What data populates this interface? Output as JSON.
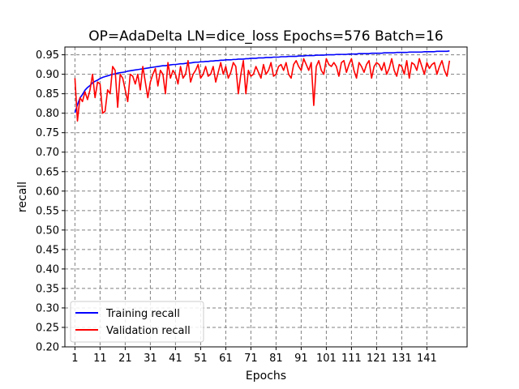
{
  "chart_data": {
    "type": "line",
    "title": "OP=AdaDelta LN=dice_loss Epochs=576 Batch=16",
    "xlabel": "Epochs",
    "ylabel": "recall",
    "xlim": [
      -3,
      157
    ],
    "ylim": [
      0.2,
      0.97
    ],
    "xticks": [
      "1",
      "11",
      "21",
      "31",
      "41",
      "51",
      "61",
      "71",
      "81",
      "91",
      "101",
      "111",
      "121",
      "131",
      "141"
    ],
    "yticks": [
      "0.20",
      "0.25",
      "0.30",
      "0.35",
      "0.40",
      "0.45",
      "0.50",
      "0.55",
      "0.60",
      "0.65",
      "0.70",
      "0.75",
      "0.80",
      "0.85",
      "0.90",
      "0.95"
    ],
    "grid": true,
    "legend_position": "lower-left",
    "x": [
      1,
      2,
      3,
      4,
      5,
      6,
      7,
      8,
      9,
      10,
      11,
      12,
      13,
      14,
      15,
      16,
      17,
      18,
      19,
      20,
      21,
      22,
      23,
      24,
      25,
      26,
      27,
      28,
      29,
      30,
      31,
      32,
      33,
      34,
      35,
      36,
      37,
      38,
      39,
      40,
      41,
      42,
      43,
      44,
      45,
      46,
      47,
      48,
      49,
      50,
      51,
      52,
      53,
      54,
      55,
      56,
      57,
      58,
      59,
      60,
      61,
      62,
      63,
      64,
      65,
      66,
      67,
      68,
      69,
      70,
      71,
      72,
      73,
      74,
      75,
      76,
      77,
      78,
      79,
      80,
      81,
      82,
      83,
      84,
      85,
      86,
      87,
      88,
      89,
      90,
      91,
      92,
      93,
      94,
      95,
      96,
      97,
      98,
      99,
      100,
      101,
      102,
      103,
      104,
      105,
      106,
      107,
      108,
      109,
      110,
      111,
      112,
      113,
      114,
      115,
      116,
      117,
      118,
      119,
      120,
      121,
      122,
      123,
      124,
      125,
      126,
      127,
      128,
      129,
      130,
      131,
      132,
      133,
      134,
      135,
      136,
      137,
      138,
      139,
      140,
      141,
      142,
      143,
      144,
      145,
      146,
      147,
      148,
      149,
      150
    ],
    "series": [
      {
        "name": "Training recall",
        "color": "#0000ff",
        "values": [
          0.801,
          0.822,
          0.839,
          0.848,
          0.859,
          0.866,
          0.871,
          0.878,
          0.882,
          0.885,
          0.889,
          0.892,
          0.894,
          0.896,
          0.898,
          0.9,
          0.901,
          0.903,
          0.904,
          0.905,
          0.906,
          0.908,
          0.909,
          0.91,
          0.911,
          0.912,
          0.913,
          0.914,
          0.915,
          0.916,
          0.917,
          0.918,
          0.919,
          0.92,
          0.921,
          0.922,
          0.922,
          0.923,
          0.924,
          0.925,
          0.925,
          0.926,
          0.927,
          0.927,
          0.928,
          0.929,
          0.929,
          0.93,
          0.931,
          0.931,
          0.932,
          0.932,
          0.933,
          0.933,
          0.934,
          0.934,
          0.935,
          0.935,
          0.936,
          0.936,
          0.937,
          0.937,
          0.937,
          0.938,
          0.938,
          0.939,
          0.939,
          0.939,
          0.94,
          0.94,
          0.941,
          0.941,
          0.941,
          0.942,
          0.942,
          0.942,
          0.943,
          0.943,
          0.943,
          0.944,
          0.944,
          0.944,
          0.945,
          0.945,
          0.945,
          0.946,
          0.946,
          0.946,
          0.946,
          0.947,
          0.947,
          0.947,
          0.948,
          0.948,
          0.948,
          0.948,
          0.949,
          0.949,
          0.949,
          0.949,
          0.95,
          0.95,
          0.95,
          0.95,
          0.951,
          0.951,
          0.951,
          0.951,
          0.951,
          0.952,
          0.952,
          0.952,
          0.952,
          0.953,
          0.953,
          0.953,
          0.953,
          0.953,
          0.954,
          0.954,
          0.954,
          0.954,
          0.954,
          0.955,
          0.955,
          0.955,
          0.955,
          0.955,
          0.956,
          0.956,
          0.956,
          0.956,
          0.956,
          0.957,
          0.957,
          0.957,
          0.957,
          0.957,
          0.957,
          0.958,
          0.958,
          0.958,
          0.958,
          0.958,
          0.959,
          0.959,
          0.959,
          0.959,
          0.959,
          0.96
        ]
      },
      {
        "name": "Validation recall",
        "color": "#ff0000",
        "values": [
          0.89,
          0.78,
          0.84,
          0.83,
          0.855,
          0.835,
          0.86,
          0.9,
          0.84,
          0.88,
          0.875,
          0.8,
          0.805,
          0.86,
          0.85,
          0.92,
          0.91,
          0.815,
          0.9,
          0.89,
          0.86,
          0.83,
          0.9,
          0.895,
          0.875,
          0.9,
          0.86,
          0.92,
          0.88,
          0.84,
          0.88,
          0.9,
          0.915,
          0.87,
          0.91,
          0.9,
          0.85,
          0.93,
          0.89,
          0.91,
          0.9,
          0.875,
          0.92,
          0.89,
          0.9,
          0.935,
          0.88,
          0.9,
          0.91,
          0.925,
          0.89,
          0.9,
          0.92,
          0.895,
          0.9,
          0.92,
          0.88,
          0.905,
          0.93,
          0.9,
          0.92,
          0.89,
          0.905,
          0.93,
          0.92,
          0.85,
          0.9,
          0.935,
          0.85,
          0.91,
          0.895,
          0.9,
          0.92,
          0.905,
          0.89,
          0.925,
          0.9,
          0.91,
          0.93,
          0.895,
          0.9,
          0.92,
          0.925,
          0.91,
          0.93,
          0.9,
          0.89,
          0.925,
          0.935,
          0.92,
          0.91,
          0.94,
          0.925,
          0.91,
          0.93,
          0.82,
          0.92,
          0.935,
          0.91,
          0.9,
          0.94,
          0.925,
          0.92,
          0.93,
          0.92,
          0.895,
          0.93,
          0.935,
          0.905,
          0.925,
          0.94,
          0.91,
          0.89,
          0.93,
          0.92,
          0.905,
          0.925,
          0.935,
          0.89,
          0.92,
          0.93,
          0.925,
          0.91,
          0.93,
          0.9,
          0.915,
          0.94,
          0.91,
          0.895,
          0.925,
          0.92,
          0.9,
          0.935,
          0.89,
          0.93,
          0.925,
          0.91,
          0.94,
          0.92,
          0.9,
          0.93,
          0.915,
          0.925,
          0.93,
          0.9,
          0.92,
          0.935,
          0.91,
          0.895,
          0.935
        ]
      }
    ]
  }
}
